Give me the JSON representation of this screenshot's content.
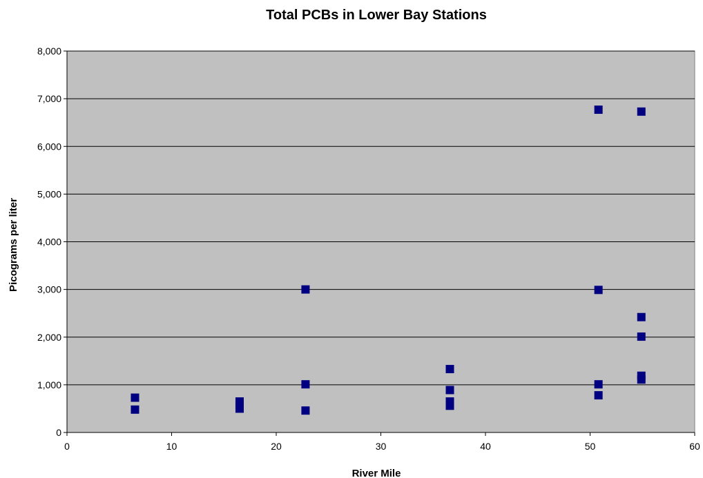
{
  "chart_data": {
    "type": "scatter",
    "title": "Total PCBs in Lower Bay Stations",
    "xlabel": "River Mile",
    "ylabel": "Picograms per liter",
    "xlim": [
      0,
      60
    ],
    "ylim": [
      0,
      8000
    ],
    "x_ticks": [
      0,
      10,
      20,
      30,
      40,
      50,
      60
    ],
    "x_tick_labels": [
      "0",
      "10",
      "20",
      "30",
      "40",
      "50",
      "60"
    ],
    "y_ticks": [
      0,
      1000,
      2000,
      3000,
      4000,
      5000,
      6000,
      7000,
      8000
    ],
    "y_tick_labels": [
      "0",
      "1,000",
      "2,000",
      "3,000",
      "4,000",
      "5,000",
      "6,000",
      "7,000",
      "8,000"
    ],
    "grid": "horizontal",
    "legend": "none",
    "plot_background": "#c0c0c0",
    "marker_color": "#000080",
    "marker_shape": "square",
    "series": [
      {
        "points": [
          {
            "x": 6.5,
            "y": 730
          },
          {
            "x": 6.5,
            "y": 480
          },
          {
            "x": 16.5,
            "y": 650
          },
          {
            "x": 16.5,
            "y": 580
          },
          {
            "x": 16.5,
            "y": 500
          },
          {
            "x": 22.8,
            "y": 3000
          },
          {
            "x": 22.8,
            "y": 1010
          },
          {
            "x": 22.8,
            "y": 460
          },
          {
            "x": 36.6,
            "y": 1330
          },
          {
            "x": 36.6,
            "y": 890
          },
          {
            "x": 36.6,
            "y": 650
          },
          {
            "x": 36.6,
            "y": 560
          },
          {
            "x": 50.8,
            "y": 6770
          },
          {
            "x": 50.8,
            "y": 2990
          },
          {
            "x": 50.8,
            "y": 1010
          },
          {
            "x": 50.8,
            "y": 780
          },
          {
            "x": 54.9,
            "y": 6730
          },
          {
            "x": 54.9,
            "y": 2420
          },
          {
            "x": 54.9,
            "y": 2010
          },
          {
            "x": 54.9,
            "y": 1190
          },
          {
            "x": 54.9,
            "y": 1110
          }
        ]
      }
    ]
  }
}
